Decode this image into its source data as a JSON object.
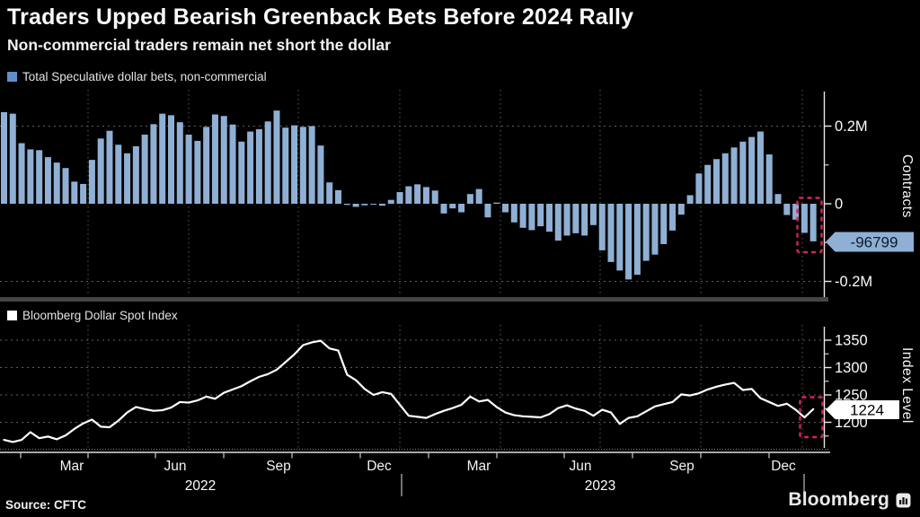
{
  "header": {
    "title": "Traders Upped Bearish Greenback Bets Before 2024 Rally",
    "subtitle": "Non-commercial traders remain net short the dollar"
  },
  "source": {
    "label": "Source: CFTC"
  },
  "brand": {
    "name": "Bloomberg"
  },
  "accent_colors": {
    "bar_blue": "#8fb0d4",
    "legend_blue": "#5d90c6",
    "highlight_red": "#d3255a",
    "line_white": "#ffffff"
  },
  "chart_data": [
    {
      "type": "bar",
      "name": "total-speculative-dollar-bets",
      "title_legend": "Total Speculative dollar bets, non-commercial",
      "ylabel": "Contracts",
      "unit": "contracts",
      "color": "#8fb0d4",
      "legend_color": "#5d90c6",
      "ylim": [
        -290000,
        295000
      ],
      "grid": true,
      "legend_position": "top-left",
      "yticks": [
        {
          "value": 200000,
          "label": "0.2M"
        },
        {
          "value": 0,
          "label": "0"
        },
        {
          "value": -200000,
          "label": "-0.2M"
        }
      ],
      "yticks_minor": [
        100000,
        -100000
      ],
      "x_unit": "weeks, Jan 2022 - Jan 2024",
      "values": [
        236000,
        232000,
        156000,
        140000,
        138000,
        120000,
        106000,
        92000,
        57000,
        51000,
        113000,
        168000,
        188000,
        152000,
        130000,
        148000,
        178000,
        205000,
        232000,
        228000,
        210000,
        178000,
        162000,
        198000,
        230000,
        226000,
        204000,
        160000,
        186000,
        192000,
        212000,
        240000,
        196000,
        202000,
        198000,
        200000,
        150000,
        55000,
        35000,
        -3000,
        -8000,
        -4000,
        -2000,
        -5000,
        10000,
        30000,
        45000,
        50000,
        43000,
        34000,
        -25000,
        -12000,
        -22000,
        25000,
        38000,
        -35000,
        3000,
        -22000,
        -48000,
        -62000,
        -68000,
        -58000,
        -72000,
        -95000,
        -82000,
        -76000,
        -82000,
        -55000,
        -120000,
        -150000,
        -172000,
        -195000,
        -183000,
        -147000,
        -131000,
        -104000,
        -69000,
        -28000,
        22000,
        78000,
        100000,
        115000,
        130000,
        145000,
        160000,
        172000,
        186000,
        127000,
        25000,
        -29000,
        -41000,
        -75000,
        -96799
      ],
      "callout": {
        "label": "-96799",
        "value": -96799
      },
      "highlight_last_bars": 2
    },
    {
      "type": "line",
      "name": "bloomberg-dollar-spot-index",
      "title_legend": "Bloomberg Dollar Spot Index",
      "ylabel": "Index Level",
      "color": "#ffffff",
      "legend_color": "#ffffff",
      "ylim": [
        1144,
        1378
      ],
      "grid": true,
      "yticks": [
        {
          "value": 1350,
          "label": "1350"
        },
        {
          "value": 1300,
          "label": "1300"
        },
        {
          "value": 1250,
          "label": "1250"
        },
        {
          "value": 1200,
          "label": "1200"
        }
      ],
      "yticks_minor": [
        1325,
        1275,
        1225,
        1175
      ],
      "values": [
        1168,
        1164,
        1168,
        1182,
        1171,
        1174,
        1169,
        1176,
        1188,
        1198,
        1205,
        1192,
        1191,
        1203,
        1218,
        1228,
        1224,
        1221,
        1222,
        1227,
        1237,
        1236,
        1240,
        1247,
        1243,
        1254,
        1260,
        1266,
        1275,
        1283,
        1288,
        1296,
        1310,
        1324,
        1341,
        1346,
        1349,
        1335,
        1331,
        1287,
        1277,
        1261,
        1250,
        1255,
        1252,
        1232,
        1212,
        1210,
        1208,
        1215,
        1221,
        1226,
        1232,
        1247,
        1238,
        1241,
        1228,
        1218,
        1213,
        1211,
        1210,
        1209,
        1215,
        1226,
        1231,
        1225,
        1221,
        1212,
        1223,
        1218,
        1197,
        1208,
        1211,
        1220,
        1229,
        1233,
        1237,
        1251,
        1249,
        1253,
        1260,
        1265,
        1269,
        1272,
        1259,
        1261,
        1244,
        1237,
        1230,
        1234,
        1223,
        1209,
        1224
      ],
      "callout": {
        "label": "1224",
        "value": 1224
      }
    }
  ],
  "xaxis": {
    "month_labels": [
      "Mar",
      "Jun",
      "Sep",
      "Dec",
      "Mar",
      "Jun",
      "Sep",
      "Dec"
    ],
    "year_labels": [
      "2022",
      "2023"
    ]
  }
}
